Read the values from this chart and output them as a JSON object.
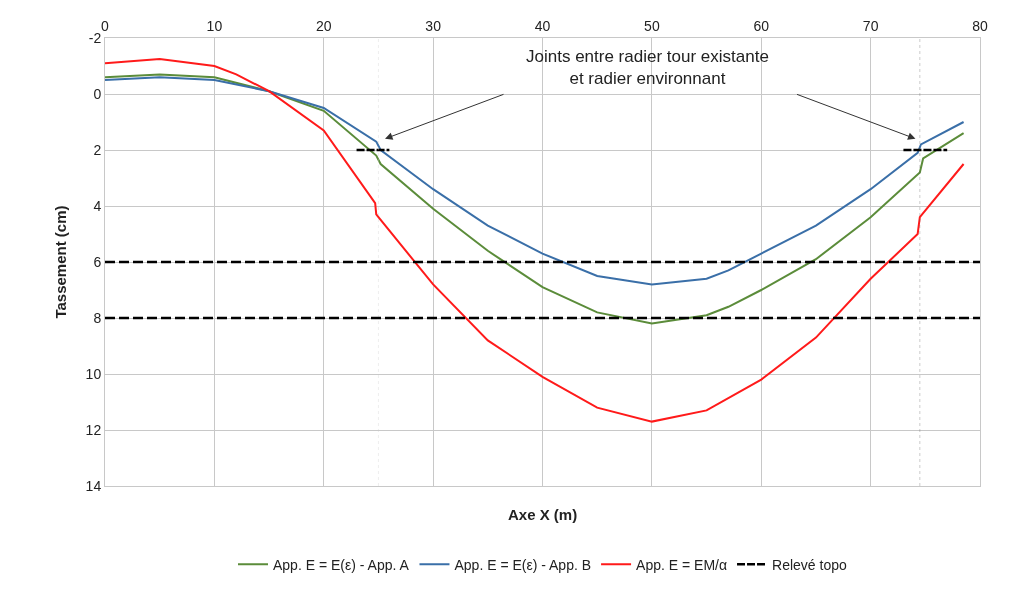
{
  "chart_data": {
    "type": "line",
    "xlabel": "Axe X (m)",
    "ylabel": "Tassement (cm)",
    "xlim": [
      0,
      80
    ],
    "xticks": [
      0,
      10,
      20,
      30,
      40,
      50,
      60,
      70,
      80
    ],
    "ylim": [
      14,
      -2
    ],
    "yticks": [
      -2,
      0,
      2,
      4,
      6,
      8,
      10,
      12,
      14
    ],
    "grid": true,
    "legend": "bottom",
    "marker": "none",
    "annotations": [
      "Joints entre radier tour existante\net radier environnant"
    ],
    "ref_lines": [
      {
        "axis": "x",
        "value": 25,
        "label": null,
        "color": "#c8c8c8",
        "line_style": "dotted"
      },
      {
        "axis": "x",
        "value": 74.5,
        "label": null,
        "color": "#555555",
        "line_style": "dotted"
      },
      {
        "axis": "y",
        "value": 6,
        "label": null,
        "color": "#000000",
        "line_style": "dashed"
      },
      {
        "axis": "y",
        "value": 8,
        "label": null,
        "color": "#000000",
        "line_style": "dashed"
      }
    ],
    "series": [
      {
        "name": "App. E = E(ε) - App. A",
        "color": "#5b8c3a",
        "line_style": "solid",
        "x": [
          0,
          5,
          10,
          15,
          20,
          24.8,
          25.2,
          30,
          35,
          40,
          45,
          50,
          55,
          57,
          60,
          65,
          70,
          74.5,
          74.8,
          78.5
        ],
        "values": [
          -0.6,
          -0.7,
          -0.6,
          -0.1,
          0.6,
          2.2,
          2.5,
          4.1,
          5.6,
          6.9,
          7.8,
          8.2,
          7.9,
          7.6,
          7.0,
          5.9,
          4.4,
          2.8,
          2.3,
          1.4
        ]
      },
      {
        "name": "App. E = E(ε) - App. B",
        "color": "#3a6fa8",
        "line_style": "solid",
        "x": [
          0,
          5,
          10,
          15,
          20,
          24.8,
          25.2,
          30,
          35,
          40,
          45,
          50,
          55,
          57,
          60,
          65,
          70,
          74.3,
          74.6,
          78.5
        ],
        "values": [
          -0.5,
          -0.6,
          -0.5,
          -0.1,
          0.5,
          1.7,
          2.0,
          3.4,
          4.7,
          5.7,
          6.5,
          6.8,
          6.6,
          6.3,
          5.7,
          4.7,
          3.4,
          2.1,
          1.8,
          1.0
        ]
      },
      {
        "name": "App. E = EM/α",
        "color": "#ff1a1a",
        "line_style": "solid",
        "x": [
          0,
          5,
          10,
          12,
          15,
          20,
          24.7,
          24.8,
          25,
          30,
          35,
          40,
          45,
          50,
          55,
          60,
          65,
          70,
          74.3,
          74.5,
          78.5
        ],
        "values": [
          -1.1,
          -1.25,
          -1.0,
          -0.7,
          -0.1,
          1.3,
          3.9,
          4.3,
          4.4,
          6.8,
          8.8,
          10.1,
          11.2,
          11.7,
          11.3,
          10.2,
          8.7,
          6.6,
          5.0,
          4.4,
          2.5
        ]
      },
      {
        "name": "Relevé topo",
        "color": "#000000",
        "line_style": "dashed",
        "x": [
          23,
          26
        ],
        "values": [
          2,
          2
        ]
      },
      {
        "color": "#000000",
        "line_style": "dashed",
        "x": [
          73,
          77
        ],
        "values": [
          2,
          2
        ]
      }
    ]
  }
}
